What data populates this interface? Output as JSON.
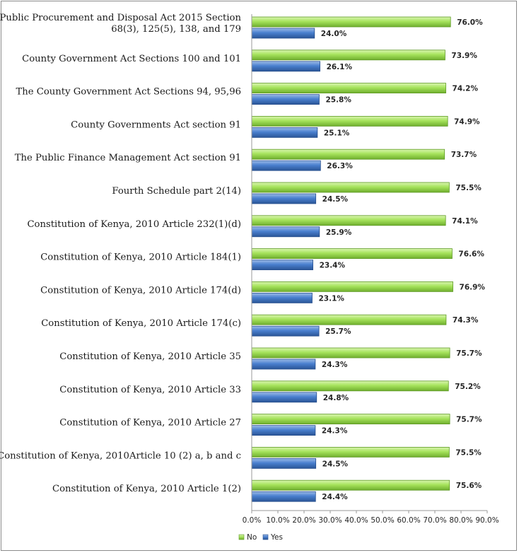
{
  "chart_data": {
    "type": "bar",
    "orientation": "horizontal",
    "title": "",
    "xlabel": "",
    "ylabel": "",
    "xlim": [
      0,
      90
    ],
    "ticks": [
      "0.0%",
      "10.0%",
      "20.0%",
      "30.0%",
      "40.0%",
      "50.0%",
      "60.0%",
      "70.0%",
      "80.0%",
      "90.0%"
    ],
    "grid": false,
    "legend_position": "bottom",
    "categories": [
      "Public Procurement and Disposal Act 2015 Section 68(3), 125(5), 138, and 179",
      "County Government Act Sections 100 and 101",
      "The County Government Act Sections 94, 95,96",
      "County Governments Act section 91",
      "The Public Finance Management Act section 91",
      "Fourth Schedule part 2(14)",
      "Constitution of Kenya, 2010 Article 232(1)(d)",
      "Constitution of Kenya, 2010 Article 184(1)",
      "Constitution of Kenya, 2010 Article 174(d)",
      "Constitution of Kenya, 2010 Article 174(c)",
      "Constitution of Kenya, 2010 Article 35",
      "Constitution of Kenya, 2010 Article 33",
      "Constitution of Kenya, 2010 Article 27",
      "Constitution of Kenya, 2010Article 10 (2) a, b and c",
      "Constitution of Kenya, 2010 Article 1(2)"
    ],
    "category_lines": [
      [
        "Public Procurement and Disposal Act 2015 Section",
        "68(3), 125(5), 138, and 179"
      ],
      [
        "County Government Act Sections 100 and 101"
      ],
      [
        "The County Government Act Sections 94, 95,96"
      ],
      [
        "County Governments Act section 91"
      ],
      [
        "The Public Finance Management Act section 91"
      ],
      [
        "Fourth Schedule part 2(14)"
      ],
      [
        "Constitution of Kenya, 2010 Article 232(1)(d)"
      ],
      [
        "Constitution of Kenya, 2010 Article 184(1)"
      ],
      [
        "Constitution of Kenya, 2010 Article 174(d)"
      ],
      [
        "Constitution of Kenya, 2010 Article 174(c)"
      ],
      [
        "Constitution of Kenya, 2010 Article 35"
      ],
      [
        "Constitution of Kenya, 2010 Article 33"
      ],
      [
        "Constitution of Kenya, 2010 Article 27"
      ],
      [
        "Constitution of Kenya, 2010Article 10 (2) a, b and c"
      ],
      [
        "Constitution of Kenya, 2010 Article 1(2)"
      ]
    ],
    "series": [
      {
        "name": "No",
        "color": "#8ed94a",
        "values": [
          76.0,
          73.9,
          74.2,
          74.9,
          73.7,
          75.5,
          74.1,
          76.6,
          76.9,
          74.3,
          75.7,
          75.2,
          75.7,
          75.5,
          75.6
        ],
        "labels": [
          "76.0%",
          "73.9%",
          "74.2%",
          "74.9%",
          "73.7%",
          "75.5%",
          "74.1%",
          "76.6%",
          "76.9%",
          "74.3%",
          "75.7%",
          "75.2%",
          "75.7%",
          "75.5%",
          "75.6%"
        ]
      },
      {
        "name": "Yes",
        "color": "#3f74c4",
        "values": [
          24.0,
          26.1,
          25.8,
          25.1,
          26.3,
          24.5,
          25.9,
          23.4,
          23.1,
          25.7,
          24.3,
          24.8,
          24.3,
          24.5,
          24.4
        ],
        "labels": [
          "24.0%",
          "26.1%",
          "25.8%",
          "25.1%",
          "26.3%",
          "24.5%",
          "25.9%",
          "23.4%",
          "23.1%",
          "25.7%",
          "24.3%",
          "24.8%",
          "24.3%",
          "24.5%",
          "24.4%"
        ]
      }
    ]
  }
}
